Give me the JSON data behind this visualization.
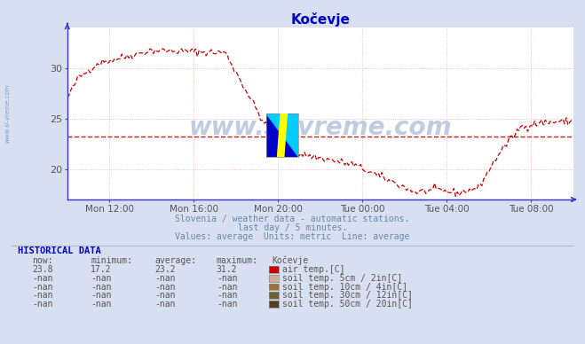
{
  "title": "Kočevje",
  "title_color": "#0000cc",
  "title_fontsize": 11,
  "bg_color": "#d8dff0",
  "plot_bg_color": "#ffffff",
  "line_color": "#cc0000",
  "avg_line_color": "#cc0000",
  "avg_value": 23.2,
  "grid_color": "#ffaaaa",
  "axis_color": "#3333cc",
  "x_label_color": "#555555",
  "y_label_color": "#555555",
  "ylim": [
    17.0,
    34.0
  ],
  "yticks": [
    20,
    25,
    30
  ],
  "x_tick_labels": [
    "Mon 12:00",
    "Mon 16:00",
    "Mon 20:00",
    "Tue 00:00",
    "Tue 04:00",
    "Tue 08:00"
  ],
  "x_tick_positions": [
    2,
    6,
    10,
    14,
    18,
    22
  ],
  "xlim": [
    0,
    24
  ],
  "subtitle1": "Slovenia / weather data - automatic stations.",
  "subtitle2": "last day / 5 minutes.",
  "subtitle3": "Values: average  Units: metric  Line: average",
  "subtitle_color": "#6688aa",
  "watermark": "www.si-vreme.com",
  "watermark_color": "#c0cce0",
  "side_text": "www.si-vreme.com",
  "hist_title": "HISTORICAL DATA",
  "hist_color": "#0000cc",
  "col_headers": [
    "    now:",
    "minimum:",
    " average:",
    " maximum:",
    "   Kočevje"
  ],
  "rows": [
    {
      "now": "23.8",
      "min": " 17.2",
      "avg": "  23.2",
      "max": "  31.2",
      "color": "#cc0000",
      "label": "air temp.[C]"
    },
    {
      "now": "-nan",
      "min": " -nan",
      "avg": "   -nan",
      "max": "   -nan",
      "color": "#c8b090",
      "label": "soil temp. 5cm / 2in[C]"
    },
    {
      "now": "-nan",
      "min": " -nan",
      "avg": "   -nan",
      "max": "   -nan",
      "color": "#a07030",
      "label": "soil temp. 10cm / 4in[C]"
    },
    {
      "now": "-nan",
      "min": " -nan",
      "avg": "   -nan",
      "max": "   -nan",
      "color": "#706030",
      "label": "soil temp. 30cm / 12in[C]"
    },
    {
      "now": "-nan",
      "min": " -nan",
      "avg": "   -nan",
      "max": "   -nan",
      "color": "#504020",
      "label": "soil temp. 50cm / 20in[C]"
    }
  ],
  "logo_yellow": "#ffff00",
  "logo_cyan": "#00ccff",
  "logo_blue": "#0000cc"
}
